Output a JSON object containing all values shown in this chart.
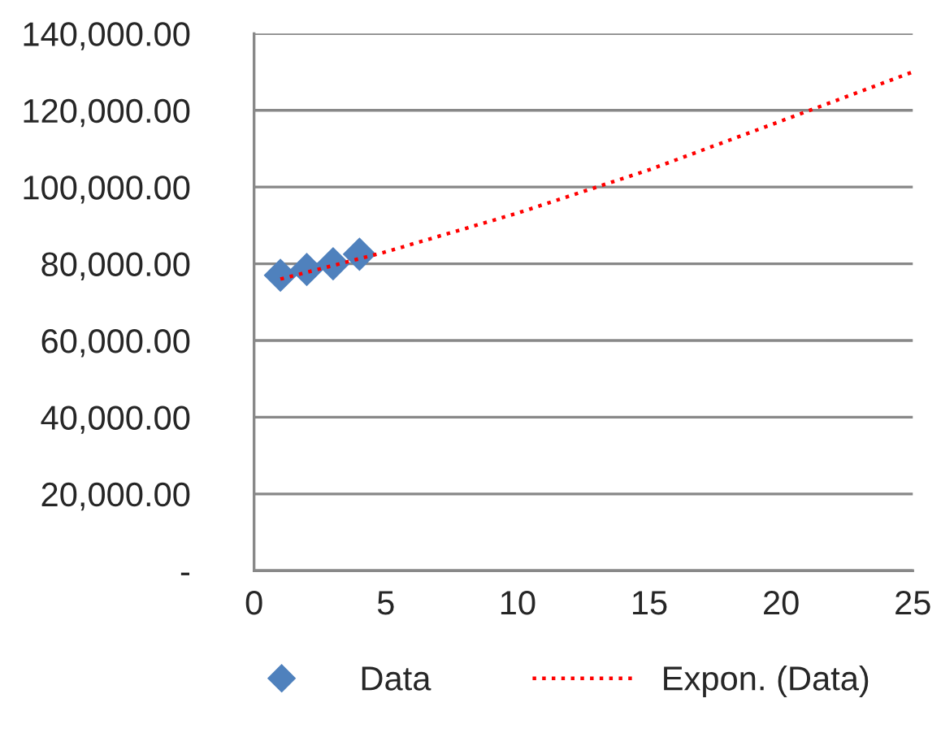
{
  "chart_data": {
    "type": "scatter",
    "series": [
      {
        "name": "Data",
        "color": "#4f81bd",
        "marker": "diamond",
        "x": [
          1,
          2,
          3,
          4
        ],
        "values": [
          77000,
          78500,
          80000,
          82500
        ]
      },
      {
        "name": "Expon. (Data)",
        "type": "line",
        "color": "#ff0000",
        "line_style": "dotted",
        "marker": "none",
        "x": [
          1,
          5,
          10,
          15,
          20,
          25
        ],
        "values": [
          76000,
          83100,
          93200,
          104500,
          117200,
          130000
        ]
      }
    ],
    "xlim": [
      0,
      25
    ],
    "xticks": [
      0,
      5,
      10,
      15,
      20,
      25
    ],
    "ylim": [
      0,
      140000
    ],
    "yticks": [
      {
        "value": 0,
        "label": "-"
      },
      {
        "value": 20000,
        "label": "20,000.00"
      },
      {
        "value": 40000,
        "label": "40,000.00"
      },
      {
        "value": 60000,
        "label": "60,000.00"
      },
      {
        "value": 80000,
        "label": "80,000.00"
      },
      {
        "value": 100000,
        "label": "100,000.00"
      },
      {
        "value": 120000,
        "label": "120,000.00"
      },
      {
        "value": 140000,
        "label": "140,000.00"
      }
    ],
    "grid": "y",
    "legend": "bottom"
  }
}
